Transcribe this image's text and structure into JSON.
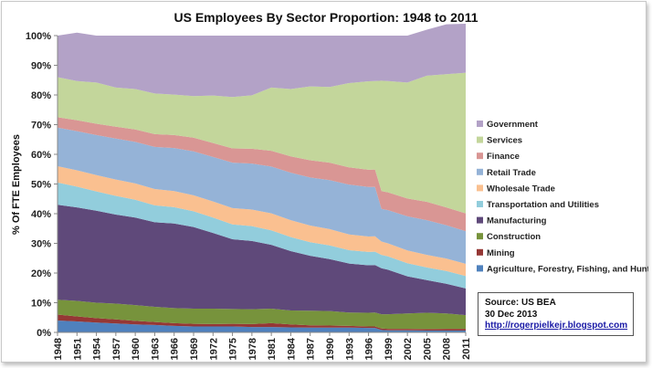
{
  "chart_data": {
    "type": "area",
    "title": "US Employees By Sector Proportion: 1948 to 2011",
    "xlabel": "",
    "ylabel": "% Of FTE Employees",
    "ylim": [
      0,
      100
    ],
    "y_ticks": [
      "0%",
      "10%",
      "20%",
      "30%",
      "40%",
      "50%",
      "60%",
      "70%",
      "80%",
      "90%",
      "100%"
    ],
    "x_ticks": [
      "1948",
      "1951",
      "1954",
      "1957",
      "1960",
      "1963",
      "1966",
      "1969",
      "1972",
      "1975",
      "1978",
      "1981",
      "1984",
      "1987",
      "1990",
      "1993",
      "1996",
      "1999",
      "2002",
      "2005",
      "2008",
      "2011"
    ],
    "x": [
      1948,
      1951,
      1954,
      1957,
      1960,
      1963,
      1966,
      1969,
      1972,
      1975,
      1978,
      1981,
      1984,
      1987,
      1990,
      1993,
      1996,
      1997,
      1998,
      1999,
      2002,
      2005,
      2008,
      2011
    ],
    "legend_position": "right",
    "series": [
      {
        "name": "Agriculture, Forestry, Fishing, and Hunting",
        "color": "#4f81bd",
        "values": [
          4.0,
          3.7,
          3.3,
          3.0,
          2.7,
          2.5,
          2.2,
          2.0,
          2.0,
          2.0,
          1.8,
          1.8,
          1.7,
          1.6,
          1.6,
          1.6,
          1.5,
          1.5,
          0.8,
          0.7,
          0.7,
          0.6,
          0.6,
          0.6
        ]
      },
      {
        "name": "Mining",
        "color": "#953735",
        "values": [
          2.0,
          1.7,
          1.5,
          1.4,
          1.2,
          1.0,
          0.9,
          0.9,
          0.8,
          0.9,
          1.0,
          1.3,
          1.0,
          0.8,
          0.7,
          0.6,
          0.5,
          0.5,
          0.5,
          0.5,
          0.5,
          0.5,
          0.6,
          0.6
        ]
      },
      {
        "name": "Construction",
        "color": "#77933c",
        "values": [
          5.0,
          5.2,
          5.2,
          5.3,
          5.3,
          5.1,
          5.1,
          5.1,
          5.2,
          5.0,
          5.0,
          4.9,
          4.7,
          4.9,
          4.9,
          4.5,
          4.6,
          4.7,
          4.8,
          4.9,
          5.2,
          5.5,
          5.2,
          4.6
        ]
      },
      {
        "name": "Manufacturing",
        "color": "#5f497a",
        "values": [
          32.0,
          31.5,
          31.0,
          30.0,
          29.5,
          28.5,
          28.5,
          27.5,
          25.5,
          23.5,
          23.0,
          21.5,
          20.0,
          18.5,
          17.5,
          16.5,
          16.0,
          16.0,
          15.5,
          15.0,
          12.5,
          11.0,
          10.0,
          9.0
        ]
      },
      {
        "name": "Transportation and Utilities",
        "color": "#92cddc",
        "values": [
          7.5,
          7.0,
          6.5,
          6.3,
          6.0,
          5.7,
          5.5,
          5.3,
          5.2,
          5.0,
          5.0,
          4.9,
          4.7,
          4.6,
          4.6,
          4.5,
          4.5,
          4.5,
          4.5,
          4.5,
          4.4,
          4.3,
          4.3,
          4.2
        ]
      },
      {
        "name": "Wholesale Trade",
        "color": "#fac090",
        "values": [
          5.5,
          5.5,
          5.5,
          5.5,
          5.5,
          5.5,
          5.4,
          5.4,
          5.4,
          5.5,
          5.6,
          5.7,
          5.7,
          5.6,
          5.5,
          5.3,
          5.2,
          5.2,
          4.5,
          4.4,
          4.3,
          4.2,
          4.2,
          4.1
        ]
      },
      {
        "name": "Retail Trade",
        "color": "#95b3d7",
        "values": [
          13.0,
          13.2,
          13.5,
          13.8,
          14.0,
          14.2,
          14.5,
          14.8,
          15.0,
          15.3,
          15.5,
          15.8,
          16.0,
          16.2,
          16.5,
          16.8,
          16.7,
          16.6,
          11.0,
          11.2,
          11.5,
          11.7,
          11.2,
          11.0
        ]
      },
      {
        "name": "Finance",
        "color": "#d99694",
        "values": [
          3.5,
          3.7,
          3.8,
          4.0,
          4.2,
          4.3,
          4.4,
          4.6,
          4.7,
          4.8,
          5.0,
          5.3,
          5.5,
          5.8,
          5.9,
          5.8,
          5.8,
          5.9,
          6.0,
          6.0,
          6.0,
          6.2,
          6.0,
          6.0
        ]
      },
      {
        "name": "Services",
        "color": "#c3d69b",
        "values": [
          13.5,
          13.2,
          13.9,
          13.2,
          13.6,
          13.7,
          13.6,
          14.0,
          16.0,
          17.3,
          18.0,
          21.3,
          22.7,
          24.9,
          25.5,
          28.4,
          29.8,
          29.8,
          37.2,
          37.5,
          39.1,
          42.5,
          44.9,
          47.4
        ]
      },
      {
        "name": "Government",
        "color": "#b3a2c7",
        "values": [
          14.0,
          16.3,
          15.8,
          17.5,
          18.0,
          19.5,
          19.9,
          20.4,
          20.2,
          20.7,
          20.1,
          17.5,
          18.0,
          17.1,
          17.3,
          16.0,
          15.4,
          15.3,
          15.2,
          15.3,
          15.8,
          15.5,
          16.8,
          16.5
        ]
      }
    ],
    "source_box": {
      "line1": "Source: US BEA",
      "line2": "30 Dec 2013",
      "link": "http://rogerpielkejr.blogspot.com"
    }
  }
}
